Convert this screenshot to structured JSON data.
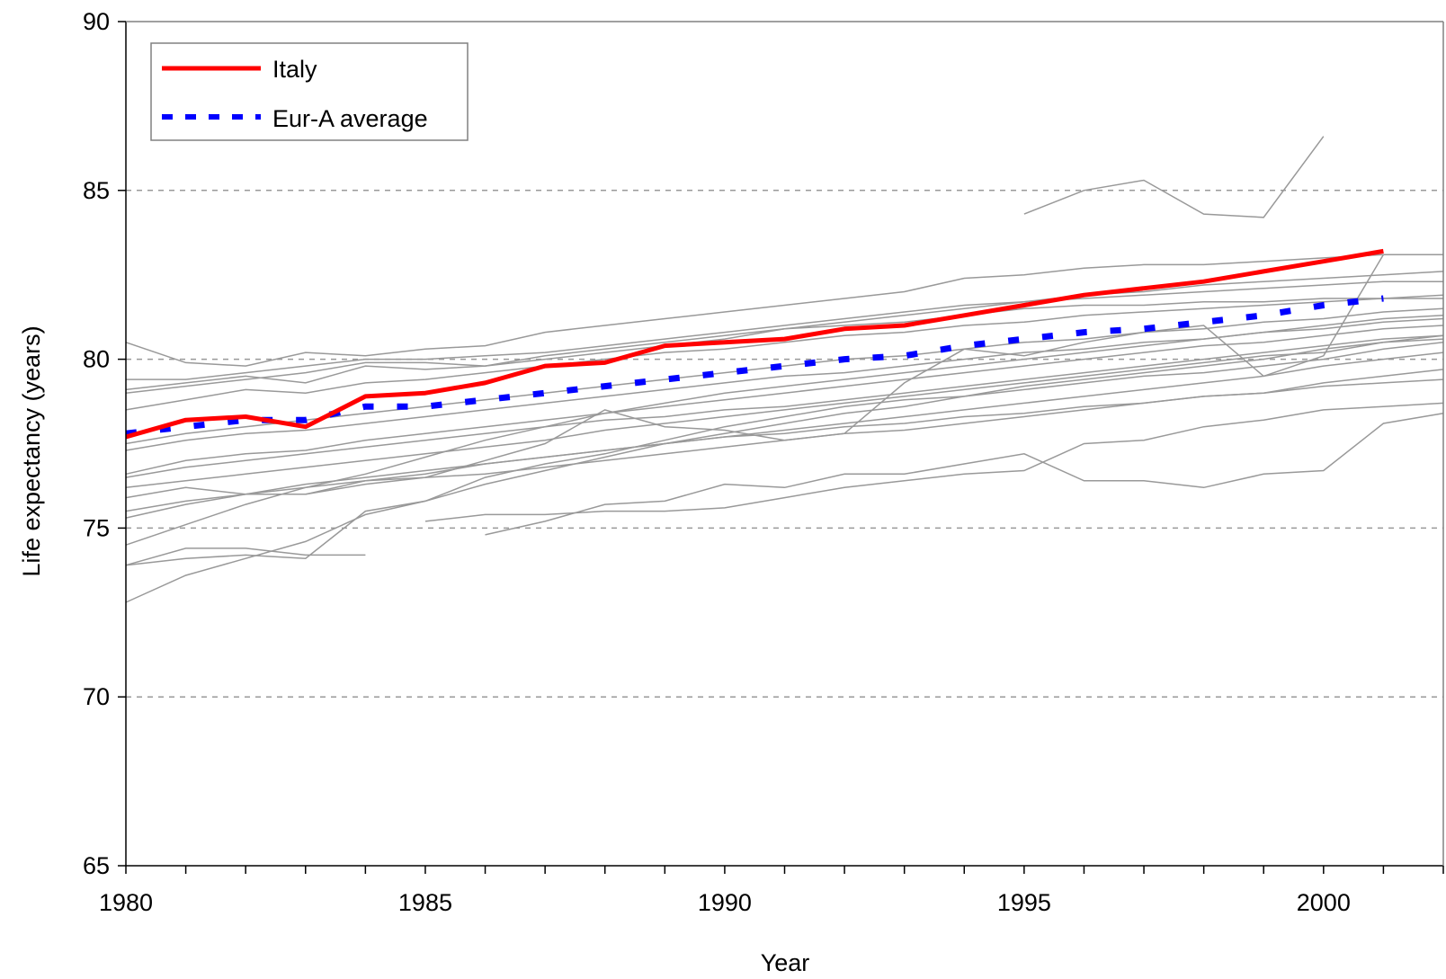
{
  "chart_data": {
    "type": "line",
    "title": "",
    "xlabel": "Year",
    "ylabel": "Life expectancy (years)",
    "xlim": [
      1980,
      2002
    ],
    "ylim": [
      65,
      90
    ],
    "x_ticks": [
      1980,
      1985,
      1990,
      1995,
      2000
    ],
    "y_ticks": [
      65,
      70,
      75,
      80,
      85,
      90
    ],
    "grid": "horizontal dashed at 70, 75, 80, 85",
    "legend_position": "top-left",
    "highlight_series": [
      {
        "name": "Italy",
        "color": "#ff0000",
        "style": "solid",
        "x": [
          1980,
          1981,
          1982,
          1983,
          1984,
          1985,
          1986,
          1987,
          1988,
          1989,
          1990,
          1991,
          1992,
          1993,
          1994,
          1995,
          1996,
          1997,
          1998,
          1999,
          2000,
          2001
        ],
        "values": [
          77.7,
          78.2,
          78.3,
          78.0,
          78.9,
          79.0,
          79.3,
          79.8,
          79.9,
          80.4,
          80.5,
          80.6,
          80.9,
          81.0,
          81.3,
          81.6,
          81.9,
          82.1,
          82.3,
          82.6,
          82.9,
          83.2
        ]
      },
      {
        "name": "Eur-A average",
        "color": "#0000ff",
        "style": "dotted",
        "x": [
          1980,
          1981,
          1982,
          1983,
          1984,
          1985,
          1986,
          1987,
          1988,
          1989,
          1990,
          1991,
          1992,
          1993,
          1994,
          1995,
          1996,
          1997,
          1998,
          1999,
          2000,
          2001
        ],
        "values": [
          77.8,
          78.0,
          78.2,
          78.2,
          78.6,
          78.6,
          78.8,
          79.0,
          79.2,
          79.4,
          79.6,
          79.8,
          80.0,
          80.1,
          80.4,
          80.6,
          80.8,
          80.9,
          81.1,
          81.3,
          81.6,
          81.8
        ]
      }
    ],
    "background_series_color": "#999999",
    "background_series": [
      {
        "x": [
          1980,
          1981,
          1982,
          1983,
          1984,
          1985,
          1986,
          1987,
          1988,
          1989,
          1990,
          1991,
          1992,
          1993,
          1994,
          1995,
          1996,
          1997,
          1998,
          1999,
          2000,
          2001,
          2002
        ],
        "values": [
          79.4,
          79.4,
          79.6,
          79.8,
          80.0,
          80.0,
          80.1,
          80.2,
          80.4,
          80.6,
          80.8,
          81.0,
          81.2,
          81.4,
          81.6,
          81.7,
          81.8,
          81.9,
          82.0,
          82.1,
          82.2,
          82.3,
          82.3
        ]
      },
      {
        "x": [
          1980,
          1981,
          1982,
          1983,
          1984,
          1985,
          1986,
          1987,
          1988,
          1989,
          1990,
          1991,
          1992,
          1993,
          1994,
          1995,
          1996,
          1997,
          1998,
          1999,
          2000,
          2001,
          2002
        ],
        "values": [
          80.5,
          79.9,
          79.8,
          80.2,
          80.1,
          80.3,
          80.4,
          80.8,
          81.0,
          81.2,
          81.4,
          81.6,
          81.8,
          82.0,
          82.4,
          82.5,
          82.7,
          82.8,
          82.8,
          82.9,
          83.0,
          83.1,
          83.1
        ]
      },
      {
        "x": [
          1980,
          1981,
          1982,
          1983,
          1984,
          1985,
          1986,
          1987,
          1988,
          1989,
          1990,
          1991,
          1992,
          1993,
          1994,
          1995,
          1996,
          1997,
          1998,
          1999,
          2000,
          2001,
          2002
        ],
        "values": [
          79.1,
          79.3,
          79.5,
          79.3,
          79.8,
          79.7,
          79.8,
          80.1,
          80.3,
          80.5,
          80.7,
          80.9,
          81.1,
          81.3,
          81.5,
          81.7,
          81.9,
          82.0,
          82.2,
          82.3,
          82.4,
          82.5,
          82.6
        ]
      },
      {
        "x": [
          1980,
          1981,
          1982,
          1983,
          1984,
          1985,
          1986,
          1987,
          1988,
          1989,
          1990,
          1991,
          1992,
          1993,
          1994,
          1995,
          1996,
          1997,
          1998,
          1999,
          2000,
          2001,
          2002
        ],
        "values": [
          79.0,
          79.2,
          79.4,
          79.6,
          79.9,
          79.9,
          79.8,
          80.0,
          80.2,
          80.4,
          80.6,
          80.9,
          81.0,
          81.1,
          81.3,
          81.5,
          81.6,
          81.6,
          81.7,
          81.7,
          81.8,
          81.8,
          81.8
        ]
      },
      {
        "x": [
          1980,
          1981,
          1982,
          1983,
          1984,
          1985,
          1986,
          1987,
          1988,
          1989,
          1990,
          1991,
          1992,
          1993,
          1994,
          1995,
          1996,
          1997,
          1998,
          1999,
          2000,
          2001,
          2002
        ],
        "values": [
          78.5,
          78.8,
          79.1,
          79.0,
          79.3,
          79.4,
          79.6,
          79.8,
          80.0,
          80.2,
          80.3,
          80.5,
          80.7,
          80.8,
          81.0,
          81.1,
          81.3,
          81.4,
          81.5,
          81.6,
          81.7,
          81.8,
          81.9
        ]
      },
      {
        "x": [
          1980,
          1981,
          1982,
          1983,
          1984,
          1985,
          1986,
          1987,
          1988,
          1989,
          1990,
          1991,
          1992,
          1993,
          1994,
          1995,
          1996,
          1997,
          1998,
          1999,
          2000,
          2001,
          2002
        ],
        "values": [
          77.5,
          77.8,
          78.0,
          78.2,
          78.4,
          78.6,
          78.8,
          79.0,
          79.2,
          79.4,
          79.6,
          79.8,
          80.0,
          80.1,
          80.3,
          80.5,
          80.6,
          80.8,
          80.9,
          81.1,
          81.2,
          81.4,
          81.5
        ]
      },
      {
        "x": [
          1980,
          1981,
          1982,
          1983,
          1984,
          1985,
          1986,
          1987,
          1988,
          1989,
          1990,
          1991,
          1992,
          1993,
          1994,
          1995,
          1996,
          1997,
          1998,
          1999,
          2000,
          2001,
          2002
        ],
        "values": [
          77.3,
          77.6,
          77.8,
          77.9,
          78.1,
          78.3,
          78.5,
          78.7,
          78.9,
          79.1,
          79.3,
          79.5,
          79.6,
          79.8,
          80.0,
          80.2,
          80.3,
          80.5,
          80.6,
          80.8,
          80.9,
          81.1,
          81.2
        ]
      },
      {
        "x": [
          1980,
          1981,
          1982,
          1983,
          1984,
          1985,
          1986,
          1987,
          1988,
          1989,
          1990,
          1991,
          1992,
          1993,
          1994,
          1995,
          1996,
          1997,
          1998,
          1999,
          2000,
          2001,
          2002
        ],
        "values": [
          76.6,
          77.0,
          77.2,
          77.3,
          77.6,
          77.8,
          78.0,
          78.2,
          78.4,
          78.6,
          78.8,
          79.0,
          79.2,
          79.4,
          79.6,
          79.8,
          80.0,
          80.2,
          80.4,
          80.5,
          80.7,
          80.9,
          81.0
        ]
      },
      {
        "x": [
          1980,
          1981,
          1982,
          1983,
          1984,
          1985,
          1986,
          1987,
          1988,
          1989,
          1990,
          1991,
          1992,
          1993,
          1994,
          1995,
          1996,
          1997,
          1998,
          1999,
          2000,
          2001,
          2002
        ],
        "values": [
          76.5,
          76.8,
          77.0,
          77.2,
          77.4,
          77.6,
          77.8,
          78.0,
          78.2,
          78.3,
          78.5,
          78.6,
          78.8,
          79.0,
          79.2,
          79.4,
          79.6,
          79.8,
          80.0,
          80.2,
          80.4,
          80.6,
          80.7
        ]
      },
      {
        "x": [
          1980,
          1981,
          1982,
          1983,
          1984,
          1985,
          1986,
          1987,
          1988,
          1989,
          1990,
          1991,
          1992,
          1993,
          1994,
          1995,
          1996,
          1997,
          1998,
          1999,
          2000,
          2001,
          2002
        ],
        "values": [
          76.2,
          76.4,
          76.6,
          76.8,
          77.0,
          77.2,
          77.4,
          77.6,
          77.9,
          78.1,
          78.3,
          78.5,
          78.7,
          78.9,
          79.1,
          79.3,
          79.5,
          79.7,
          79.9,
          80.1,
          80.2,
          80.5,
          80.6
        ]
      },
      {
        "x": [
          1980,
          1981,
          1982,
          1983,
          1984,
          1985,
          1986,
          1987,
          1988,
          1989,
          1990,
          1991,
          1992,
          1993,
          1994,
          1995,
          1996,
          1997,
          1998,
          1999,
          2000,
          2001,
          2002
        ],
        "values": [
          75.9,
          76.2,
          76.0,
          76.3,
          76.5,
          76.7,
          76.9,
          77.1,
          77.3,
          77.5,
          77.7,
          77.9,
          78.1,
          78.3,
          78.5,
          78.7,
          78.9,
          79.1,
          79.3,
          79.5,
          79.8,
          80.0,
          80.2
        ]
      },
      {
        "x": [
          1980,
          1981,
          1982,
          1983,
          1984,
          1985,
          1986,
          1987,
          1988,
          1989,
          1990,
          1991,
          1992,
          1993,
          1994,
          1995,
          1996,
          1997,
          1998,
          1999,
          2000,
          2001,
          2002
        ],
        "values": [
          75.5,
          75.8,
          76.0,
          76.2,
          76.4,
          76.6,
          76.9,
          77.1,
          77.3,
          77.5,
          77.7,
          77.8,
          78.0,
          78.1,
          78.3,
          78.4,
          78.6,
          78.7,
          78.9,
          79.0,
          79.2,
          79.3,
          79.4
        ]
      },
      {
        "x": [
          1980,
          1981,
          1982,
          1983,
          1984,
          1985,
          1986,
          1987,
          1988,
          1989,
          1990,
          1991,
          1992,
          1993,
          1994,
          1995,
          1996,
          1997,
          1998,
          1999,
          2000,
          2001,
          2002
        ],
        "values": [
          75.3,
          75.7,
          76.0,
          76.0,
          76.3,
          76.5,
          76.6,
          76.8,
          77.0,
          77.2,
          77.4,
          77.6,
          77.8,
          77.9,
          78.1,
          78.3,
          78.5,
          78.7,
          78.9,
          79.0,
          79.3,
          79.5,
          79.7
        ]
      },
      {
        "x": [
          1980,
          1981,
          1982,
          1983,
          1984,
          1985,
          1986,
          1987,
          1988,
          1989,
          1990,
          1991,
          1992,
          1993,
          1994,
          1995,
          1996,
          1997,
          1998,
          1999,
          2000,
          2001,
          2002
        ],
        "values": [
          74.5,
          75.1,
          75.7,
          76.2,
          76.6,
          77.1,
          77.6,
          78.0,
          78.4,
          78.7,
          79.0,
          79.2,
          79.4,
          79.6,
          79.8,
          80.0,
          80.2,
          80.4,
          80.6,
          80.8,
          81.0,
          81.2,
          81.3
        ]
      },
      {
        "x": [
          1980,
          1981,
          1982,
          1983,
          1984,
          1985,
          1986,
          1987,
          1988,
          1989,
          1990,
          1991,
          1992,
          1993,
          1994,
          1995,
          1996,
          1997,
          1998,
          1999,
          2000,
          2001,
          2002
        ],
        "values": [
          73.9,
          74.1,
          74.2,
          74.1,
          75.5,
          75.8,
          76.5,
          76.9,
          77.2,
          77.6,
          78.0,
          78.3,
          78.6,
          78.8,
          78.9,
          79.1,
          79.3,
          79.5,
          79.6,
          79.8,
          80.0,
          80.3,
          80.5
        ]
      },
      {
        "x": [
          1980,
          1981,
          1982,
          1983,
          1984
        ],
        "values": [
          73.9,
          74.4,
          74.4,
          74.2,
          74.2
        ]
      },
      {
        "x": [
          1980,
          1981,
          1982,
          1983,
          1984,
          1985,
          1986,
          1987,
          1988,
          1989,
          1990,
          1991,
          1992,
          1993,
          1994,
          1995,
          1996,
          1997,
          1998,
          1999,
          2000,
          2001,
          2002
        ],
        "values": [
          72.8,
          73.6,
          74.1,
          74.6,
          75.4,
          75.8,
          76.3,
          76.7,
          77.1,
          77.5,
          77.8,
          78.1,
          78.4,
          78.6,
          78.9,
          79.2,
          79.4,
          79.6,
          79.8,
          80.0,
          80.3,
          80.5,
          80.7
        ]
      },
      {
        "x": [
          1985,
          1986,
          1987,
          1988,
          1989,
          1990,
          1991,
          1992,
          1993,
          1994,
          1995,
          1996,
          1997,
          1998,
          1999,
          2000,
          2001,
          2002
        ],
        "values": [
          75.2,
          75.4,
          75.4,
          75.5,
          75.5,
          75.6,
          75.9,
          76.2,
          76.4,
          76.6,
          76.7,
          77.5,
          77.6,
          78.0,
          78.2,
          78.5,
          78.6,
          78.7
        ]
      },
      {
        "x": [
          1986,
          1987,
          1988,
          1989,
          1990,
          1991,
          1992,
          1993,
          1994,
          1995,
          1996,
          1997,
          1998,
          1999,
          2000,
          2001,
          2002
        ],
        "values": [
          74.8,
          75.2,
          75.7,
          75.8,
          76.3,
          76.2,
          76.6,
          76.6,
          76.9,
          77.2,
          76.4,
          76.4,
          76.2,
          76.6,
          76.7,
          78.1,
          78.4
        ]
      },
      {
        "x": [
          1995,
          1996,
          1997,
          1998,
          1999,
          2000
        ],
        "values": [
          84.3,
          85.0,
          85.3,
          84.3,
          84.2,
          86.6
        ]
      },
      {
        "x": [
          1983,
          1984,
          1985,
          1986,
          1987,
          1988,
          1989,
          1990,
          1991,
          1992,
          1993,
          1994,
          1995,
          1996,
          1997,
          1998,
          1999,
          2000,
          2001
        ],
        "values": [
          76.0,
          76.4,
          76.5,
          77.0,
          77.5,
          78.5,
          78.0,
          77.9,
          77.6,
          77.8,
          79.3,
          80.3,
          80.1,
          80.5,
          80.8,
          81.0,
          79.5,
          80.1,
          83.1
        ]
      }
    ]
  }
}
